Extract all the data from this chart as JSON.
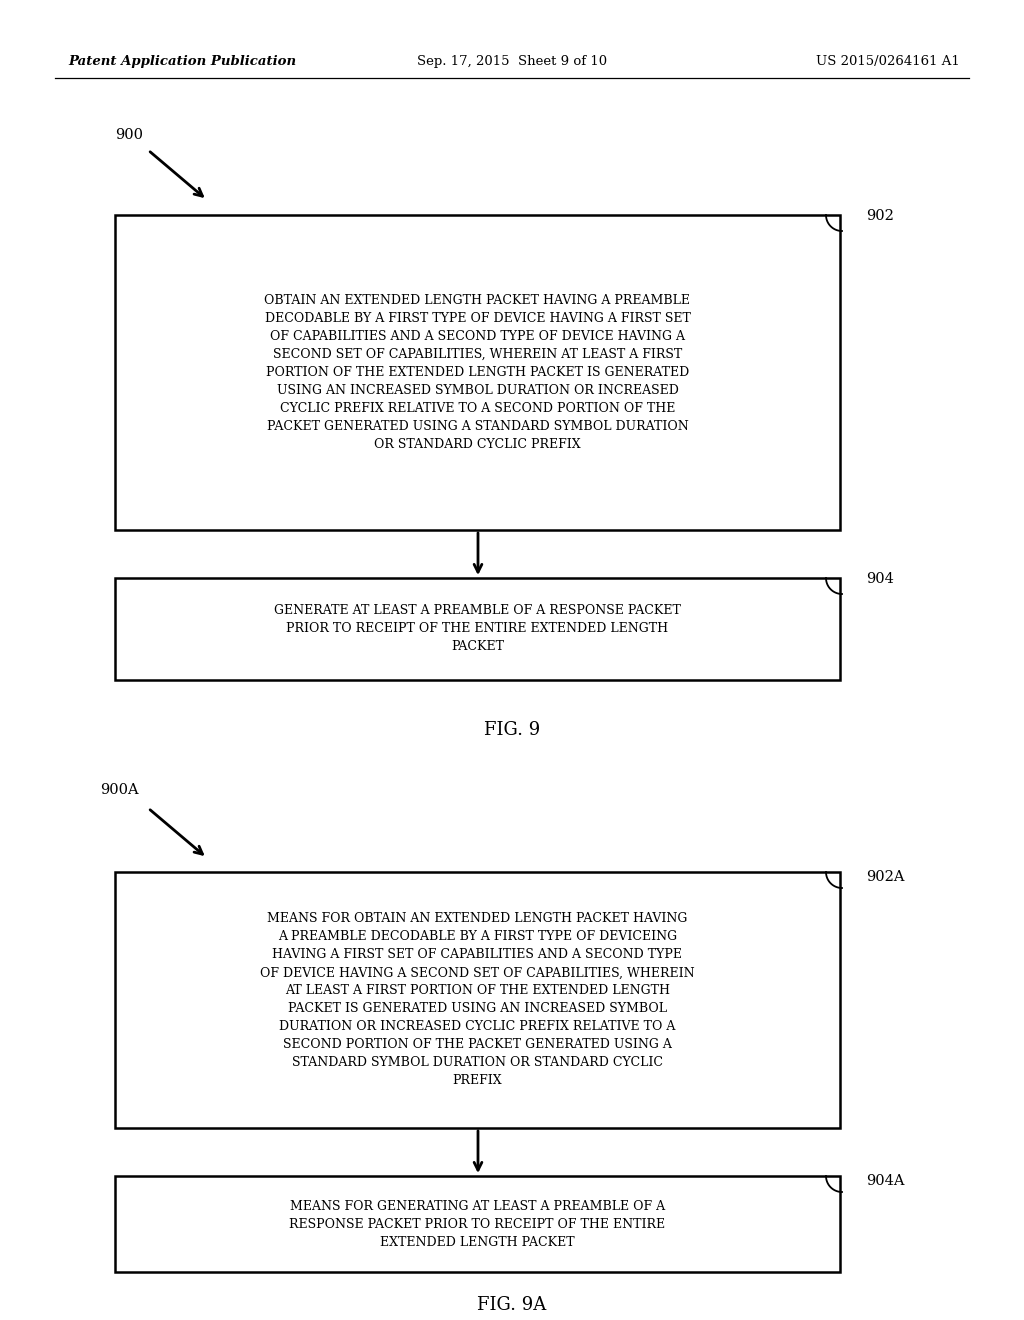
{
  "bg_color": "#ffffff",
  "header_left": "Patent Application Publication",
  "header_center": "Sep. 17, 2015  Sheet 9 of 10",
  "header_right": "US 2015/0264161 A1",
  "fig9_label": "FIG. 9",
  "fig9a_label": "FIG. 9A",
  "fig9_flow_label": "900",
  "fig9a_flow_label": "900A",
  "box902_label": "902",
  "box904_label": "904",
  "box902a_label": "902A",
  "box904a_label": "904A",
  "box902_text": "OBTAIN AN EXTENDED LENGTH PACKET HAVING A PREAMBLE\nDECODABLE BY A FIRST TYPE OF DEVICE HAVING A FIRST SET\nOF CAPABILITIES AND A SECOND TYPE OF DEVICE HAVING A\nSECOND SET OF CAPABILITIES, WHEREIN AT LEAST A FIRST\nPORTION OF THE EXTENDED LENGTH PACKET IS GENERATED\nUSING AN INCREASED SYMBOL DURATION OR INCREASED\nCYCLIC PREFIX RELATIVE TO A SECOND PORTION OF THE\nPACKET GENERATED USING A STANDARD SYMBOL DURATION\nOR STANDARD CYCLIC PREFIX",
  "box904_text": "GENERATE AT LEAST A PREAMBLE OF A RESPONSE PACKET\nPRIOR TO RECEIPT OF THE ENTIRE EXTENDED LENGTH\nPACKET",
  "box902a_text": "MEANS FOR OBTAIN AN EXTENDED LENGTH PACKET HAVING\nA PREAMBLE DECODABLE BY A FIRST TYPE OF DEVICEING\nHAVING A FIRST SET OF CAPABILITIES AND A SECOND TYPE\nOF DEVICE HAVING A SECOND SET OF CAPABILITIES, WHEREIN\nAT LEAST A FIRST PORTION OF THE EXTENDED LENGTH\nPACKET IS GENERATED USING AN INCREASED SYMBOL\nDURATION OR INCREASED CYCLIC PREFIX RELATIVE TO A\nSECOND PORTION OF THE PACKET GENERATED USING A\nSTANDARD SYMBOL DURATION OR STANDARD CYCLIC\nPREFIX",
  "box904a_text": "MEANS FOR GENERATING AT LEAST A PREAMBLE OF A\nRESPONSE PACKET PRIOR TO RECEIPT OF THE ENTIRE\nEXTENDED LENGTH PACKET"
}
